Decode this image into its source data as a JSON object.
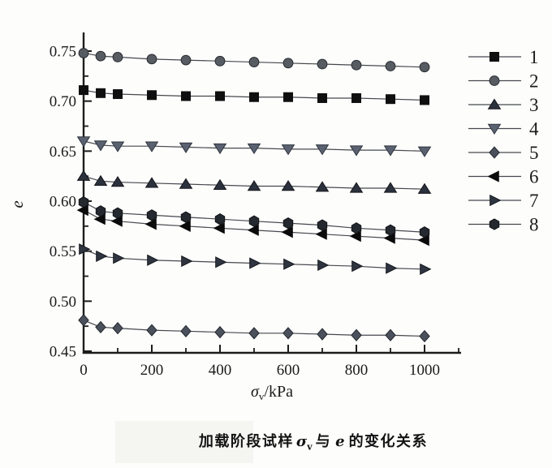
{
  "caption": {
    "prefix": "加载阶段试样",
    "sigma_symbol": "σ",
    "sigma_subscript": "v",
    "connector": "与",
    "e_symbol": "e",
    "suffix": "的变化关系"
  },
  "chart_data": {
    "type": "line",
    "title": "",
    "xlabel": "σv/kPa",
    "xlabel_parts": {
      "symbol": "σ",
      "subscript": "v",
      "unit": "/kPa"
    },
    "ylabel": "e",
    "xlim": [
      0,
      1100
    ],
    "ylim": [
      0.45,
      0.77
    ],
    "grid": false,
    "legend_position": "right",
    "legend_labels": [
      "1",
      "2",
      "3",
      "4",
      "5",
      "6",
      "7",
      "8"
    ],
    "x_major_ticks": [
      0,
      200,
      400,
      600,
      800,
      1000
    ],
    "x_minor_ticks": [
      100,
      300,
      500,
      700,
      900,
      1100
    ],
    "y_major_ticks": [
      0.45,
      0.5,
      0.55,
      0.6,
      0.65,
      0.7,
      0.75
    ],
    "y_minor_ticks": [
      0.475,
      0.525,
      0.575,
      0.625,
      0.675,
      0.725
    ],
    "x": [
      0,
      50,
      100,
      200,
      300,
      400,
      500,
      600,
      700,
      800,
      900,
      1000
    ],
    "series": [
      {
        "name": "1",
        "marker": "square",
        "color": "#0f0f10",
        "edge": "#0f0f10",
        "values": [
          0.711,
          0.708,
          0.707,
          0.706,
          0.705,
          0.705,
          0.704,
          0.704,
          0.703,
          0.703,
          0.702,
          0.701
        ]
      },
      {
        "name": "2",
        "marker": "circle",
        "color": "#575c63",
        "edge": "#26292d",
        "values": [
          0.748,
          0.745,
          0.744,
          0.742,
          0.741,
          0.74,
          0.739,
          0.738,
          0.737,
          0.736,
          0.735,
          0.734
        ]
      },
      {
        "name": "3",
        "marker": "triangle-up",
        "color": "#2b313d",
        "edge": "#151419",
        "values": [
          0.625,
          0.62,
          0.619,
          0.618,
          0.617,
          0.616,
          0.615,
          0.615,
          0.614,
          0.613,
          0.613,
          0.612
        ]
      },
      {
        "name": "4",
        "marker": "triangle-down",
        "color": "#5a6170",
        "edge": "#2f343d",
        "values": [
          0.66,
          0.656,
          0.655,
          0.655,
          0.654,
          0.653,
          0.653,
          0.652,
          0.652,
          0.651,
          0.651,
          0.65
        ]
      },
      {
        "name": "5",
        "marker": "diamond",
        "color": "#4a515c",
        "edge": "#23272d",
        "values": [
          0.481,
          0.474,
          0.473,
          0.471,
          0.47,
          0.469,
          0.468,
          0.468,
          0.467,
          0.466,
          0.466,
          0.465
        ]
      },
      {
        "name": "6",
        "marker": "triangle-left",
        "color": "#0b0b0c",
        "edge": "#0b0b0c",
        "values": [
          0.591,
          0.582,
          0.58,
          0.577,
          0.575,
          0.573,
          0.571,
          0.569,
          0.567,
          0.565,
          0.563,
          0.561
        ]
      },
      {
        "name": "7",
        "marker": "triangle-right",
        "color": "#2f3540",
        "edge": "#14171c",
        "values": [
          0.552,
          0.545,
          0.543,
          0.541,
          0.54,
          0.539,
          0.538,
          0.537,
          0.536,
          0.535,
          0.533,
          0.532
        ]
      },
      {
        "name": "8",
        "marker": "hexagon",
        "color": "#24292f",
        "edge": "#101214",
        "values": [
          0.599,
          0.59,
          0.588,
          0.586,
          0.584,
          0.582,
          0.58,
          0.578,
          0.576,
          0.573,
          0.571,
          0.569
        ]
      }
    ]
  },
  "colors": {
    "axis": "#1c1c1c",
    "line": "#45484d",
    "text": "#1b1b1b",
    "background": "#fdfdfc",
    "scan_artifact": "#f5f5f1"
  }
}
